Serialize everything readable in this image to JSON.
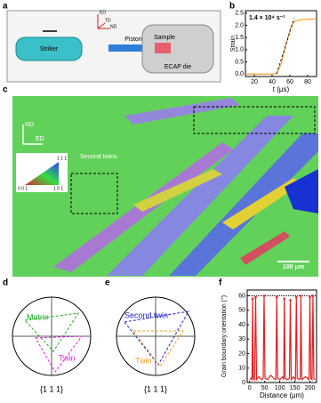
{
  "labels": [
    "a",
    "b",
    "c",
    "d",
    "e",
    "f"
  ],
  "setup": {
    "striker": "Striker",
    "piston": "Piston",
    "sample": "Sample",
    "die": "ECAP die",
    "axes": [
      "ED",
      "TD",
      "ND"
    ]
  },
  "map": {
    "axes": [
      "ND",
      "ED"
    ],
    "annotation": "Second twins",
    "scale_bar": "100 μm",
    "key": [
      "1 1 1",
      "0 0 1",
      "1 0 1"
    ]
  },
  "pole_figures": [
    {
      "labels": [
        "Matrix",
        "Twin"
      ],
      "plane": "{1 1 1}"
    },
    {
      "labels": [
        "Second twin",
        "Twin"
      ],
      "plane": "{1 1 1}"
    }
  ],
  "chart_data": [
    {
      "type": "line",
      "annotation": "1.4 × 10⁴ s⁻¹",
      "xlabel": "t (μs)",
      "ylabel": "Strain",
      "x": [
        10,
        20,
        30,
        40,
        45,
        50,
        55,
        60,
        62,
        65,
        70,
        80,
        90
      ],
      "series": [
        {
          "color": "#f5a030",
          "values": [
            0,
            0,
            0,
            0,
            0.02,
            0.4,
            1.1,
            1.8,
            2.0,
            2.15,
            2.22,
            2.25,
            2.26
          ]
        },
        {
          "color": "#000000",
          "dashed": true,
          "values": [
            null,
            null,
            null,
            null,
            0,
            0.58,
            1.15,
            1.73,
            1.96,
            2.3,
            null,
            null,
            null
          ]
        }
      ],
      "xlim": [
        10,
        90
      ],
      "ylim": [
        -0.1,
        2.6
      ],
      "xticks": [
        20,
        40,
        60,
        80
      ],
      "yticks": [
        {
          "value": 0,
          "label": "0.0"
        },
        {
          "value": 0.5,
          "label": "0.5"
        },
        {
          "value": 1,
          "label": "1.0"
        },
        {
          "value": 1.5,
          "label": "1.5"
        },
        {
          "value": 2,
          "label": "2.0"
        },
        {
          "value": 2.5,
          "label": "2.5"
        }
      ]
    },
    {
      "type": "line",
      "xlabel": "Distance (μm)",
      "ylabel": "Grain boundary orientation (°)",
      "markers": true,
      "hline": 60,
      "x": [
        0,
        5,
        8,
        10,
        12,
        16,
        20,
        23,
        30,
        40,
        45,
        48,
        51,
        60,
        70,
        80,
        87,
        90,
        93,
        100,
        110,
        113,
        115,
        118,
        125,
        132,
        135,
        138,
        145,
        152,
        155,
        158,
        165,
        168,
        170,
        173,
        185,
        197,
        200,
        203,
        207,
        210,
        213,
        218
      ],
      "series": [
        {
          "color": "#e02020",
          "values": [
            2,
            3,
            2,
            58,
            3,
            2,
            59,
            2,
            4,
            2,
            3,
            60,
            3,
            2,
            5,
            3,
            2,
            59,
            3,
            2,
            4,
            2,
            58,
            3,
            2,
            3,
            57,
            2,
            4,
            2,
            59,
            3,
            2,
            3,
            60,
            2,
            4,
            2,
            59,
            3,
            2,
            60,
            3,
            2
          ]
        }
      ],
      "xlim": [
        -8,
        222
      ],
      "ylim": [
        0,
        64
      ],
      "xticks": [
        0,
        50,
        100,
        150,
        200
      ],
      "yticks": [
        0,
        10,
        20,
        30,
        40,
        50,
        60
      ]
    }
  ]
}
